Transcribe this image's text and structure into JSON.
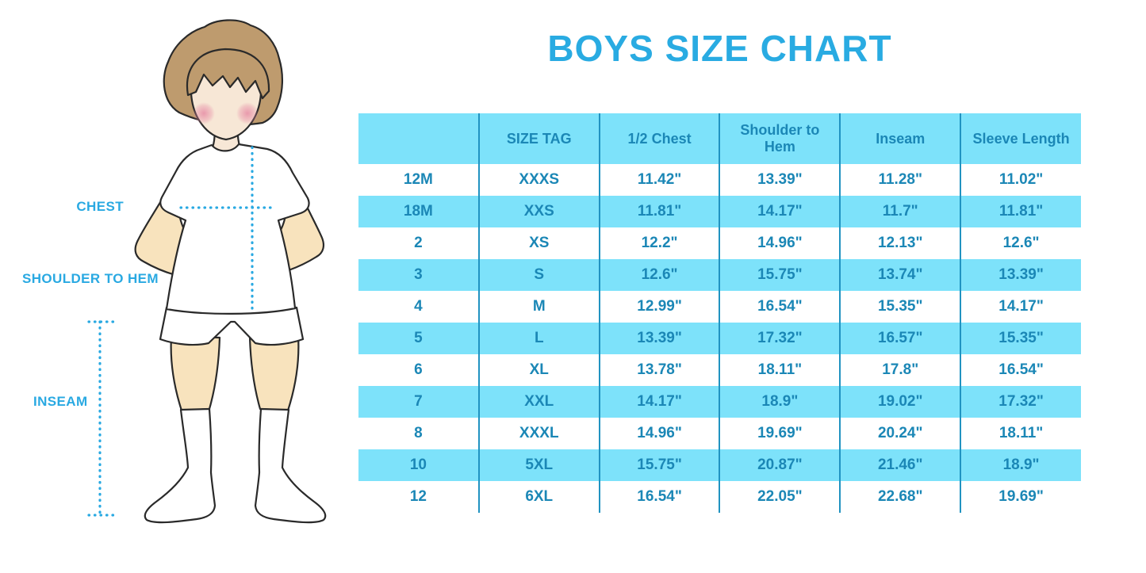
{
  "title": "BOYS SIZE CHART",
  "colors": {
    "accent_blue": "#29ABE2",
    "table_fill": "#7DE2FA",
    "table_text": "#1B87B6",
    "divider_line": "#2193C1",
    "dotted_measure_line": "#29A9E2"
  },
  "figure": {
    "description": "illustrated boy in white t-shirt, shorts and knee socks with dotted measurement guides",
    "labels": {
      "chest": "CHEST",
      "shoulder_to_hem": "SHOULDER TO HEM",
      "inseam": "INSEAM"
    }
  },
  "chart_data": {
    "type": "table",
    "title": "BOYS SIZE CHART",
    "columns": [
      "",
      "SIZE TAG",
      "1/2 Chest",
      "Shoulder to Hem",
      "Inseam",
      "Sleeve Length"
    ],
    "rows": [
      [
        "12M",
        "XXXS",
        "11.42\"",
        "13.39\"",
        "11.28\"",
        "11.02\""
      ],
      [
        "18M",
        "XXS",
        "11.81\"",
        "14.17\"",
        "11.7\"",
        "11.81\""
      ],
      [
        "2",
        "XS",
        "12.2\"",
        "14.96\"",
        "12.13\"",
        "12.6\""
      ],
      [
        "3",
        "S",
        "12.6\"",
        "15.75\"",
        "13.74\"",
        "13.39\""
      ],
      [
        "4",
        "M",
        "12.99\"",
        "16.54\"",
        "15.35\"",
        "14.17\""
      ],
      [
        "5",
        "L",
        "13.39\"",
        "17.32\"",
        "16.57\"",
        "15.35\""
      ],
      [
        "6",
        "XL",
        "13.78\"",
        "18.11\"",
        "17.8\"",
        "16.54\""
      ],
      [
        "7",
        "XXL",
        "14.17\"",
        "18.9\"",
        "19.02\"",
        "17.32\""
      ],
      [
        "8",
        "XXXL",
        "14.96\"",
        "19.69\"",
        "20.24\"",
        "18.11\""
      ],
      [
        "10",
        "5XL",
        "15.75\"",
        "20.87\"",
        "21.46\"",
        "18.9\""
      ],
      [
        "12",
        "6XL",
        "16.54\"",
        "22.05\"",
        "22.68\"",
        "19.69\""
      ]
    ],
    "stripe_pattern": "header and every second data row filled light cyan, others white",
    "units": "inches"
  }
}
